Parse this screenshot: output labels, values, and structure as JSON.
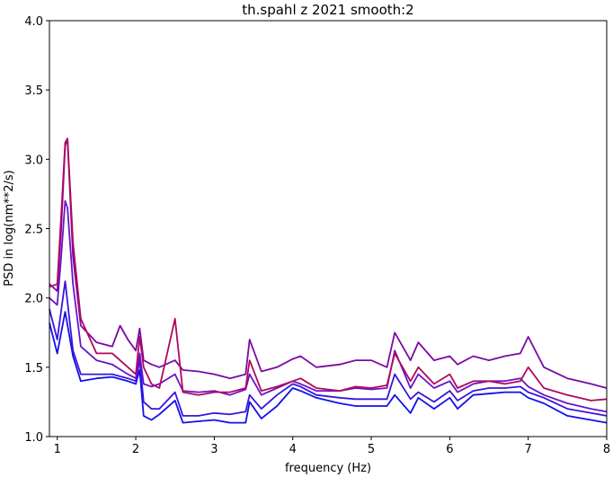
{
  "chart_data": {
    "type": "line",
    "title": "th.spahl z 2021 smooth:2",
    "xlabel": "frequency (Hz)",
    "ylabel": "PSD in log(nm**2/s)",
    "xlim": [
      0.9,
      8.0
    ],
    "ylim": [
      1.0,
      4.0
    ],
    "x_ticks": [
      1,
      2,
      3,
      4,
      5,
      6,
      7,
      8
    ],
    "y_ticks": [
      1.0,
      1.5,
      2.0,
      2.5,
      3.0,
      3.5,
      4.0
    ],
    "x_tick_labels": [
      "1",
      "2",
      "3",
      "4",
      "5",
      "6",
      "7",
      "8"
    ],
    "y_tick_labels": [
      "1.0",
      "1.5",
      "2.0",
      "2.5",
      "3.0",
      "3.5",
      "4.0"
    ],
    "grid": false,
    "legend": "none",
    "series": [
      {
        "color": "#1010ee",
        "x": [
          0.9,
          1.0,
          1.1,
          1.2,
          1.3,
          1.5,
          1.7,
          1.9,
          2.0,
          2.05,
          2.1,
          2.2,
          2.3,
          2.5,
          2.6,
          2.8,
          3.0,
          3.2,
          3.4,
          3.45,
          3.6,
          3.8,
          4.0,
          4.1,
          4.3,
          4.6,
          4.8,
          5.0,
          5.2,
          5.3,
          5.5,
          5.6,
          5.8,
          6.0,
          6.1,
          6.3,
          6.5,
          6.7,
          6.9,
          7.0,
          7.2,
          7.5,
          7.8,
          8.0
        ],
        "y": [
          1.82,
          1.6,
          1.9,
          1.58,
          1.4,
          1.42,
          1.43,
          1.4,
          1.38,
          1.48,
          1.15,
          1.12,
          1.16,
          1.26,
          1.1,
          1.11,
          1.12,
          1.1,
          1.1,
          1.25,
          1.13,
          1.22,
          1.35,
          1.33,
          1.28,
          1.24,
          1.22,
          1.22,
          1.22,
          1.3,
          1.17,
          1.28,
          1.2,
          1.28,
          1.2,
          1.3,
          1.31,
          1.32,
          1.32,
          1.28,
          1.24,
          1.15,
          1.12,
          1.1
        ]
      },
      {
        "color": "#3b14dc",
        "x": [
          0.9,
          1.0,
          1.1,
          1.2,
          1.3,
          1.5,
          1.7,
          1.9,
          2.0,
          2.05,
          2.1,
          2.2,
          2.3,
          2.5,
          2.6,
          2.8,
          3.0,
          3.2,
          3.4,
          3.45,
          3.6,
          3.8,
          4.0,
          4.1,
          4.3,
          4.6,
          4.8,
          5.0,
          5.2,
          5.3,
          5.5,
          5.6,
          5.8,
          6.0,
          6.1,
          6.3,
          6.5,
          6.7,
          6.9,
          7.0,
          7.2,
          7.5,
          7.8,
          8.0
        ],
        "y": [
          1.92,
          1.7,
          2.12,
          1.62,
          1.45,
          1.45,
          1.45,
          1.42,
          1.4,
          1.55,
          1.25,
          1.2,
          1.2,
          1.32,
          1.15,
          1.15,
          1.17,
          1.16,
          1.18,
          1.3,
          1.2,
          1.3,
          1.38,
          1.36,
          1.3,
          1.28,
          1.27,
          1.27,
          1.27,
          1.45,
          1.27,
          1.32,
          1.25,
          1.33,
          1.26,
          1.33,
          1.35,
          1.35,
          1.36,
          1.32,
          1.28,
          1.2,
          1.17,
          1.15
        ]
      },
      {
        "color": "#6a14c8",
        "x": [
          0.9,
          1.0,
          1.05,
          1.1,
          1.13,
          1.2,
          1.3,
          1.5,
          1.7,
          1.9,
          2.0,
          2.05,
          2.1,
          2.2,
          2.3,
          2.5,
          2.6,
          2.8,
          3.0,
          3.2,
          3.4,
          3.45,
          3.6,
          3.8,
          4.0,
          4.1,
          4.3,
          4.6,
          4.8,
          5.0,
          5.2,
          5.3,
          5.5,
          5.6,
          5.8,
          6.0,
          6.1,
          6.3,
          6.5,
          6.7,
          6.9,
          7.0,
          7.2,
          7.5,
          7.8,
          8.0
        ],
        "y": [
          2.0,
          1.95,
          2.3,
          2.7,
          2.65,
          2.1,
          1.65,
          1.55,
          1.52,
          1.45,
          1.42,
          1.6,
          1.38,
          1.36,
          1.38,
          1.45,
          1.33,
          1.32,
          1.33,
          1.3,
          1.34,
          1.45,
          1.3,
          1.35,
          1.4,
          1.38,
          1.33,
          1.33,
          1.35,
          1.34,
          1.35,
          1.62,
          1.35,
          1.45,
          1.35,
          1.4,
          1.32,
          1.38,
          1.4,
          1.4,
          1.42,
          1.36,
          1.3,
          1.24,
          1.2,
          1.18
        ]
      },
      {
        "color": "#7a0aa6",
        "x": [
          0.9,
          1.0,
          1.05,
          1.1,
          1.13,
          1.2,
          1.3,
          1.5,
          1.7,
          1.8,
          1.9,
          2.0,
          2.05,
          2.1,
          2.2,
          2.3,
          2.5,
          2.6,
          2.8,
          3.0,
          3.2,
          3.4,
          3.45,
          3.6,
          3.8,
          4.0,
          4.1,
          4.3,
          4.6,
          4.8,
          5.0,
          5.2,
          5.3,
          5.5,
          5.6,
          5.8,
          6.0,
          6.1,
          6.3,
          6.5,
          6.7,
          6.9,
          7.0,
          7.2,
          7.5,
          7.8,
          8.0
        ],
        "y": [
          2.1,
          2.05,
          2.5,
          3.1,
          3.14,
          2.3,
          1.8,
          1.68,
          1.65,
          1.8,
          1.7,
          1.62,
          1.78,
          1.55,
          1.52,
          1.5,
          1.55,
          1.48,
          1.47,
          1.45,
          1.42,
          1.45,
          1.7,
          1.47,
          1.5,
          1.56,
          1.58,
          1.5,
          1.52,
          1.55,
          1.55,
          1.5,
          1.75,
          1.55,
          1.68,
          1.55,
          1.58,
          1.52,
          1.58,
          1.55,
          1.58,
          1.6,
          1.72,
          1.5,
          1.42,
          1.38,
          1.35
        ]
      },
      {
        "color": "#b0085e",
        "x": [
          0.9,
          1.0,
          1.05,
          1.1,
          1.13,
          1.2,
          1.3,
          1.5,
          1.7,
          1.9,
          2.0,
          2.05,
          2.1,
          2.2,
          2.3,
          2.5,
          2.6,
          2.8,
          3.0,
          3.2,
          3.4,
          3.45,
          3.6,
          3.8,
          4.0,
          4.1,
          4.3,
          4.6,
          4.8,
          5.0,
          5.2,
          5.3,
          5.5,
          5.6,
          5.8,
          6.0,
          6.1,
          6.3,
          6.5,
          6.7,
          6.9,
          7.0,
          7.2,
          7.5,
          7.8,
          8.0
        ],
        "y": [
          2.08,
          2.1,
          2.6,
          3.12,
          3.15,
          2.4,
          1.85,
          1.6,
          1.6,
          1.5,
          1.45,
          1.72,
          1.5,
          1.38,
          1.35,
          1.85,
          1.32,
          1.3,
          1.32,
          1.32,
          1.35,
          1.55,
          1.33,
          1.36,
          1.4,
          1.42,
          1.35,
          1.33,
          1.36,
          1.35,
          1.37,
          1.6,
          1.4,
          1.5,
          1.38,
          1.45,
          1.35,
          1.4,
          1.4,
          1.38,
          1.4,
          1.5,
          1.35,
          1.3,
          1.26,
          1.27
        ]
      }
    ]
  }
}
